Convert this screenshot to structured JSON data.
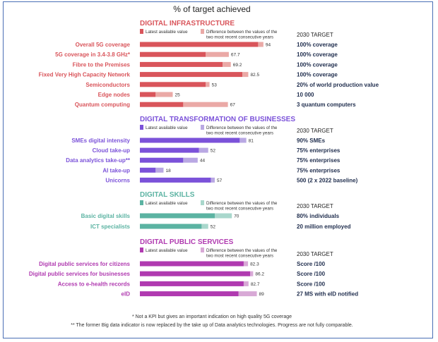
{
  "title": "% of target achieved",
  "target_header": "2030 TARGET",
  "footnotes": [
    "* Not a KPI but gives an important indication on high quality 5G coverage",
    "** The former Big data indicator is now replaced by the take up of Data analytics technologies. Progress are not fully comparable."
  ],
  "chart_data": {
    "type": "bar",
    "orientation": "horizontal",
    "xlim": [
      0,
      100
    ],
    "sections": [
      {
        "name": "DIGITAL INFRASTRUCTURE",
        "color": "#d9555b",
        "diff_color": "#eaa9a6",
        "legend_latest": "Latest available value",
        "legend_diff": "Difference between the values of the two most recent consecutive years",
        "rows": [
          {
            "label": "Overall 5G coverage",
            "latest": 90,
            "value": 94,
            "value_label": "94",
            "target": "100% coverage"
          },
          {
            "label": "5G coverage in 3.4-3.8 GHz*",
            "latest": 50,
            "value": 67.7,
            "value_label": "67.7",
            "target": "100% coverage"
          },
          {
            "label": "Fibre to the Premises",
            "latest": 63,
            "value": 69.2,
            "value_label": "69.2",
            "target": "100% coverage"
          },
          {
            "label": "Fixed Very High Capacity Network",
            "latest": 78,
            "value": 82.5,
            "value_label": "82.5",
            "target": "100% coverage"
          },
          {
            "label": "Semiconductors",
            "latest": 50,
            "value": 53,
            "value_label": "53",
            "target": "20% of world production value"
          },
          {
            "label": "Edge nodes",
            "latest": 12,
            "value": 25,
            "value_label": "25",
            "target": "10 000"
          },
          {
            "label": "Quantum computing",
            "latest": 33,
            "value": 67,
            "value_label": "67",
            "target": "3 quantum computers"
          }
        ]
      },
      {
        "name": "DIGITAL TRANSFORMATION OF BUSINESSES",
        "color": "#7b52d9",
        "diff_color": "#b9a8e3",
        "legend_latest": "Latest available value",
        "legend_diff": "Difference between the values of the two most recent consecutive years",
        "rows": [
          {
            "label": "SMEs digital intensity",
            "latest": 76,
            "value": 81,
            "value_label": "81",
            "target": "90% SMEs"
          },
          {
            "label": "Cloud take-up",
            "latest": 45,
            "value": 52,
            "value_label": "52",
            "target": "75% enterprises"
          },
          {
            "label": "Data analytics take-up**",
            "latest": 33,
            "value": 44,
            "value_label": "44",
            "target": "75% enterprises"
          },
          {
            "label": "AI take-up",
            "latest": 12,
            "value": 18,
            "value_label": "18",
            "target": "75% enterprises"
          },
          {
            "label": "Unicorns",
            "latest": 54,
            "value": 57,
            "value_label": "57",
            "target": "500 (2 x 2022 baseline)"
          }
        ]
      },
      {
        "name": "DIGITAL SKILLS",
        "color": "#5bb3a2",
        "diff_color": "#a9d7cc",
        "legend_latest": "Latest available value",
        "legend_diff": "Difference between the values of the two most recent consecutive years",
        "rows": [
          {
            "label": "Basic digital skills",
            "latest": 57,
            "value": 70,
            "value_label": "70",
            "target": "80% individuals"
          },
          {
            "label": "ICT specialists",
            "latest": 47,
            "value": 52,
            "value_label": "52",
            "target": "20 million employed"
          }
        ]
      },
      {
        "name": "DIGITAL PUBLIC SERVICES",
        "color": "#b03ab0",
        "diff_color": "#d8a9d6",
        "legend_latest": "Latest available value",
        "legend_diff": "Difference between the values of the two most recent consecutive years",
        "rows": [
          {
            "label": "Digital public services for citizens",
            "latest": 79,
            "value": 82.3,
            "value_label": "82.3",
            "target": "Score /100"
          },
          {
            "label": "Digital public services for businesses",
            "latest": 84,
            "value": 86.2,
            "value_label": "86.2",
            "target": "Score /100"
          },
          {
            "label": "Access to e-health records",
            "latest": 79,
            "value": 82.7,
            "value_label": "82.7",
            "target": "Score /100"
          },
          {
            "label": "eID",
            "latest": 75,
            "value": 89,
            "value_label": "89",
            "target": "27 MS with eID notified"
          }
        ]
      }
    ]
  }
}
